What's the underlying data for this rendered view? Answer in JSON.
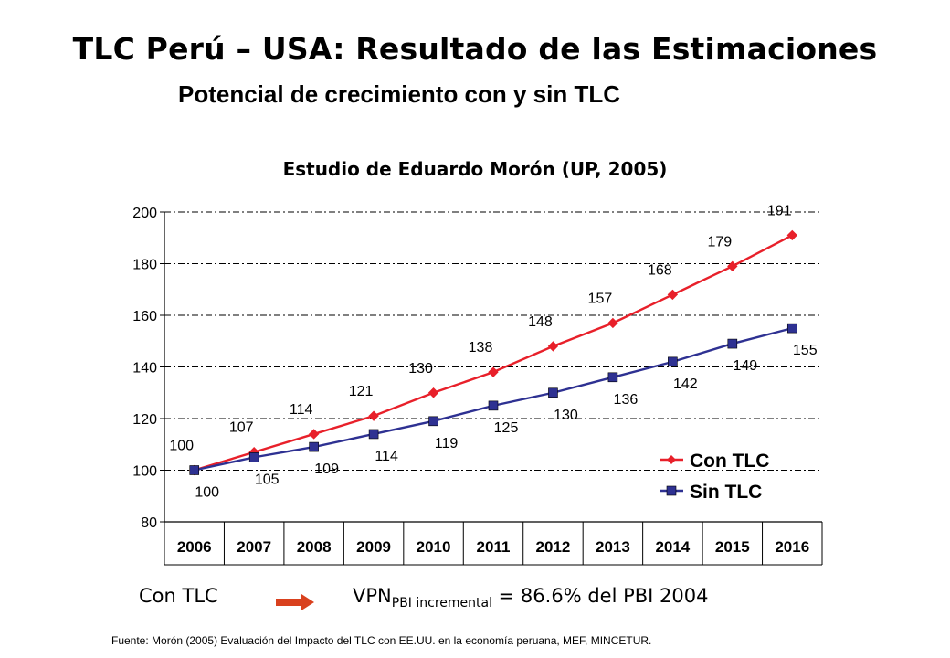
{
  "header": {
    "title": "TLC Perú – USA: Resultado de las Estimaciones",
    "subtitle": "Potencial de crecimiento con y sin TLC"
  },
  "chart_data": {
    "type": "line",
    "title": "Estudio de Eduardo Morón (UP, 2005)",
    "x": [
      "2006",
      "2007",
      "2008",
      "2009",
      "2010",
      "2011",
      "2012",
      "2013",
      "2014",
      "2015",
      "2016"
    ],
    "series": [
      {
        "name": "Con TLC",
        "color": "#e8202a",
        "marker": "diamond",
        "values": [
          100,
          107,
          114,
          121,
          130,
          138,
          148,
          157,
          168,
          179,
          191
        ]
      },
      {
        "name": "Sin TLC",
        "color": "#2e3192",
        "marker": "square",
        "values": [
          100,
          105,
          109,
          114,
          119,
          125,
          130,
          136,
          142,
          149,
          155
        ]
      }
    ],
    "yticks": [
      80,
      100,
      120,
      140,
      160,
      180,
      200
    ],
    "ylim": [
      80,
      200
    ],
    "grid": "horizontal dash-dot",
    "legend": "bottom-right"
  },
  "footer": {
    "con_label": "Con TLC",
    "arrow_color": "#d9411e",
    "vpn_main": "VPN",
    "vpn_sub": "PBI incremental",
    "vpn_rest": " = 86.6% del PBI 2004",
    "source": "Fuente: Morón (2005) Evaluación del Impacto del TLC con EE.UU. en la economía peruana, MEF, MINCETUR."
  }
}
